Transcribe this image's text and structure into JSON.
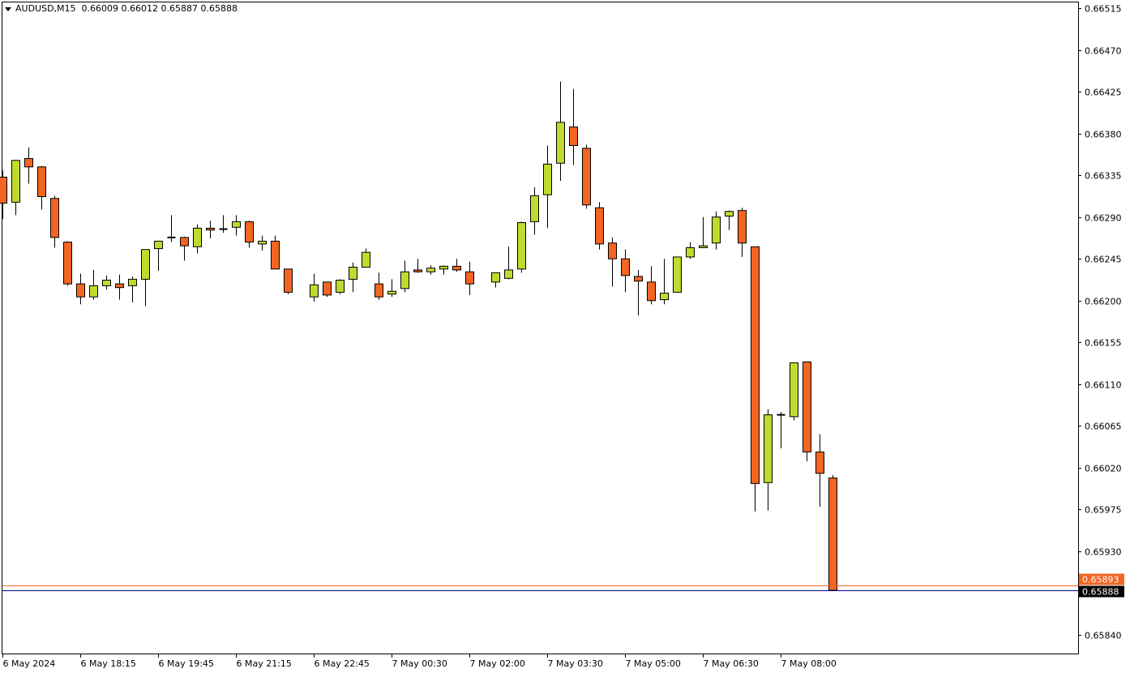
{
  "header": {
    "symbol_timeframe": "AUDUSD,M15",
    "ohlc_text": "0.66009 0.66012 0.65887 0.65888"
  },
  "colors": {
    "bull": "#c2da2e",
    "bear": "#f26522",
    "outline": "#000000",
    "bid_line": "#000080",
    "ask_line": "#f26522",
    "background": "#ffffff"
  },
  "chart_data": {
    "type": "candlestick",
    "title": "AUDUSD,M15",
    "grid": false,
    "ylim": [
      0.65815,
      0.66525
    ],
    "y_ticks": [
      "0.66515",
      "0.66470",
      "0.66425",
      "0.66380",
      "0.66335",
      "0.66290",
      "0.66245",
      "0.66200",
      "0.66155",
      "0.66110",
      "0.66065",
      "0.66020",
      "0.65975",
      "0.65930",
      "0.65840"
    ],
    "x_ticks": [
      {
        "bar": 0,
        "label": "6 May 2024"
      },
      {
        "bar": 6,
        "label": "6 May 18:15"
      },
      {
        "bar": 12,
        "label": "6 May 19:45"
      },
      {
        "bar": 18,
        "label": "6 May 21:15"
      },
      {
        "bar": 24,
        "label": "6 May 22:45"
      },
      {
        "bar": 30,
        "label": "7 May 00:30"
      },
      {
        "bar": 36,
        "label": "7 May 02:00"
      },
      {
        "bar": 42,
        "label": "7 May 03:30"
      },
      {
        "bar": 48,
        "label": "7 May 05:00"
      },
      {
        "bar": 54,
        "label": "7 May 06:30"
      },
      {
        "bar": 60,
        "label": "7 May 08:00"
      }
    ],
    "bid": {
      "value": 0.65888,
      "label": "0.65888"
    },
    "ask": {
      "value": 0.65893,
      "label": "0.65893"
    },
    "ohlc": [
      [
        0.66333,
        0.6634,
        0.66288,
        0.66305
      ],
      [
        0.66306,
        0.66351,
        0.66292,
        0.66351
      ],
      [
        0.66353,
        0.66365,
        0.66326,
        0.66344
      ],
      [
        0.66344,
        0.66345,
        0.66298,
        0.66312
      ],
      [
        0.6631,
        0.66313,
        0.66257,
        0.66268
      ],
      [
        0.66263,
        0.66264,
        0.66216,
        0.66218
      ],
      [
        0.66218,
        0.66229,
        0.66196,
        0.66204
      ],
      [
        0.66204,
        0.66233,
        0.66201,
        0.66216
      ],
      [
        0.66216,
        0.66227,
        0.66212,
        0.66222
      ],
      [
        0.66218,
        0.66228,
        0.66201,
        0.66214
      ],
      [
        0.66216,
        0.66226,
        0.66198,
        0.66223
      ],
      [
        0.66223,
        0.66255,
        0.66194,
        0.66255
      ],
      [
        0.66256,
        0.66264,
        0.66232,
        0.66264
      ],
      [
        0.66268,
        0.66292,
        0.66263,
        0.66268
      ],
      [
        0.66268,
        0.66269,
        0.66243,
        0.66259
      ],
      [
        0.66258,
        0.66282,
        0.66251,
        0.66278
      ],
      [
        0.66278,
        0.66286,
        0.66267,
        0.66276
      ],
      [
        0.66277,
        0.66292,
        0.66273,
        0.66277
      ],
      [
        0.66279,
        0.66292,
        0.6627,
        0.66285
      ],
      [
        0.66285,
        0.66286,
        0.66257,
        0.66263
      ],
      [
        0.66261,
        0.6627,
        0.66254,
        0.66264
      ],
      [
        0.66264,
        0.6627,
        0.66234,
        0.66234
      ],
      [
        0.66234,
        0.66234,
        0.66207,
        0.66209
      ],
      null,
      [
        0.66204,
        0.66229,
        0.66199,
        0.66217
      ],
      [
        0.6622,
        0.6622,
        0.66204,
        0.66206
      ],
      [
        0.66209,
        0.66223,
        0.66207,
        0.66222
      ],
      [
        0.66223,
        0.66241,
        0.66209,
        0.66236
      ],
      [
        0.66236,
        0.66256,
        0.66236,
        0.66252
      ],
      [
        0.66218,
        0.6623,
        0.66201,
        0.66204
      ],
      [
        0.66207,
        0.66223,
        0.66204,
        0.6621
      ],
      [
        0.66213,
        0.66243,
        0.66209,
        0.66231
      ],
      [
        0.66233,
        0.66245,
        0.6623,
        0.66231
      ],
      [
        0.66231,
        0.66238,
        0.66228,
        0.66235
      ],
      [
        0.66234,
        0.66238,
        0.66228,
        0.66237
      ],
      [
        0.66237,
        0.66245,
        0.66231,
        0.66233
      ],
      [
        0.66231,
        0.66242,
        0.66206,
        0.66218
      ],
      null,
      [
        0.6622,
        0.6623,
        0.66214,
        0.6623
      ],
      [
        0.66224,
        0.66258,
        0.66223,
        0.66233
      ],
      [
        0.66234,
        0.66285,
        0.6623,
        0.66284
      ],
      [
        0.66285,
        0.66322,
        0.66271,
        0.66313
      ],
      [
        0.66314,
        0.66367,
        0.66278,
        0.66347
      ],
      [
        0.66348,
        0.66436,
        0.66329,
        0.66392
      ],
      [
        0.66387,
        0.66428,
        0.66346,
        0.66367
      ],
      [
        0.66364,
        0.66368,
        0.66299,
        0.66303
      ],
      [
        0.663,
        0.66306,
        0.66255,
        0.66261
      ],
      [
        0.66262,
        0.66268,
        0.66215,
        0.66245
      ],
      [
        0.66245,
        0.66255,
        0.66209,
        0.66227
      ],
      [
        0.66226,
        0.66233,
        0.66184,
        0.66221
      ],
      [
        0.6622,
        0.66237,
        0.66196,
        0.662
      ],
      [
        0.66201,
        0.66245,
        0.66196,
        0.66208
      ],
      [
        0.66209,
        0.66247,
        0.66209,
        0.66247
      ],
      [
        0.66247,
        0.66263,
        0.66245,
        0.66257
      ],
      [
        0.66257,
        0.6629,
        0.66257,
        0.66259
      ],
      [
        0.66262,
        0.66296,
        0.66255,
        0.6629
      ],
      [
        0.66291,
        0.66297,
        0.66276,
        0.66296
      ],
      [
        0.66297,
        0.663,
        0.66247,
        0.66262
      ],
      [
        0.66258,
        0.66258,
        0.65973,
        0.66003
      ],
      [
        0.66004,
        0.66083,
        0.65974,
        0.66077
      ],
      [
        0.66077,
        0.6608,
        0.66041,
        0.66077
      ],
      [
        0.66075,
        0.66133,
        0.66071,
        0.66133
      ],
      [
        0.66134,
        0.66134,
        0.66027,
        0.66037
      ],
      [
        0.66037,
        0.66056,
        0.65978,
        0.66014
      ],
      [
        0.66009,
        0.66012,
        0.65887,
        0.65888
      ]
    ]
  }
}
